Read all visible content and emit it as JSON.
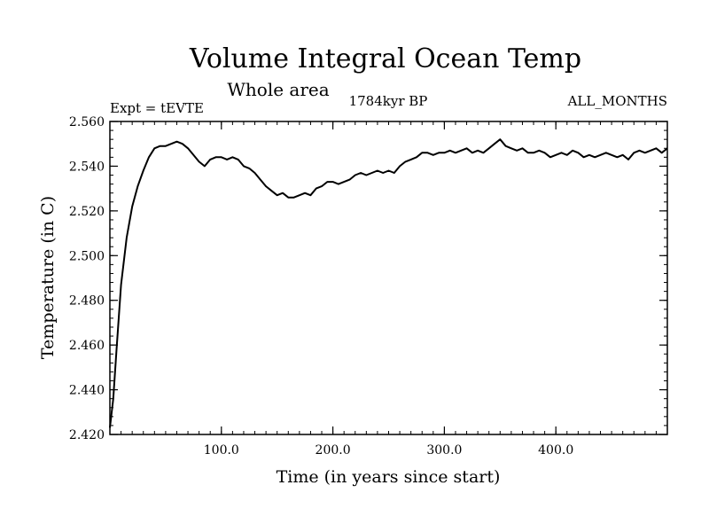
{
  "chart_data": {
    "type": "line",
    "title": "Volume Integral Ocean Temp",
    "subtitle": "Whole area",
    "experiment": "Expt = tEVTE",
    "period": "1784kyr BP",
    "months": "ALL_MONTHS",
    "xlabel": "Time (in years since start)",
    "ylabel": "Temperature (in C)",
    "xlim": [
      0,
      500
    ],
    "ylim": [
      2.42,
      2.56
    ],
    "x_ticks": [
      100,
      200,
      300,
      400
    ],
    "x_tick_labels": [
      "100.0",
      "200.0",
      "300.0",
      "400.0"
    ],
    "y_ticks": [
      2.42,
      2.44,
      2.46,
      2.48,
      2.5,
      2.52,
      2.54,
      2.56
    ],
    "y_tick_labels": [
      "2.420",
      "2.440",
      "2.460",
      "2.480",
      "2.500",
      "2.520",
      "2.540",
      "2.560"
    ],
    "grid": false,
    "series": [
      {
        "name": "Volume integral ocean temperature",
        "color": "#000000",
        "x": [
          0,
          3,
          6,
          10,
          15,
          20,
          25,
          30,
          35,
          40,
          45,
          50,
          55,
          60,
          65,
          70,
          75,
          80,
          85,
          90,
          95,
          100,
          105,
          110,
          115,
          120,
          125,
          130,
          135,
          140,
          145,
          150,
          155,
          160,
          165,
          170,
          175,
          180,
          185,
          190,
          195,
          200,
          205,
          210,
          215,
          220,
          225,
          230,
          235,
          240,
          245,
          250,
          255,
          260,
          265,
          270,
          275,
          280,
          285,
          290,
          295,
          300,
          305,
          310,
          315,
          320,
          325,
          330,
          335,
          340,
          345,
          350,
          355,
          360,
          365,
          370,
          375,
          380,
          385,
          390,
          395,
          400,
          405,
          410,
          415,
          420,
          425,
          430,
          435,
          440,
          445,
          450,
          455,
          460,
          465,
          470,
          475,
          480,
          485,
          490,
          495,
          500
        ],
        "values": [
          2.423,
          2.436,
          2.458,
          2.487,
          2.508,
          2.522,
          2.531,
          2.538,
          2.544,
          2.548,
          2.549,
          2.549,
          2.55,
          2.551,
          2.55,
          2.548,
          2.545,
          2.542,
          2.54,
          2.543,
          2.544,
          2.544,
          2.543,
          2.544,
          2.543,
          2.54,
          2.539,
          2.537,
          2.534,
          2.531,
          2.529,
          2.527,
          2.528,
          2.526,
          2.526,
          2.527,
          2.528,
          2.527,
          2.53,
          2.531,
          2.533,
          2.533,
          2.532,
          2.533,
          2.534,
          2.536,
          2.537,
          2.536,
          2.537,
          2.538,
          2.537,
          2.538,
          2.537,
          2.54,
          2.542,
          2.543,
          2.544,
          2.546,
          2.546,
          2.545,
          2.546,
          2.546,
          2.547,
          2.546,
          2.547,
          2.548,
          2.546,
          2.547,
          2.546,
          2.548,
          2.55,
          2.552,
          2.549,
          2.548,
          2.547,
          2.548,
          2.546,
          2.546,
          2.547,
          2.546,
          2.544,
          2.545,
          2.546,
          2.545,
          2.547,
          2.546,
          2.544,
          2.545,
          2.544,
          2.545,
          2.546,
          2.545,
          2.544,
          2.545,
          2.543,
          2.546,
          2.547,
          2.546,
          2.547,
          2.548,
          2.546,
          2.548
        ]
      }
    ]
  }
}
